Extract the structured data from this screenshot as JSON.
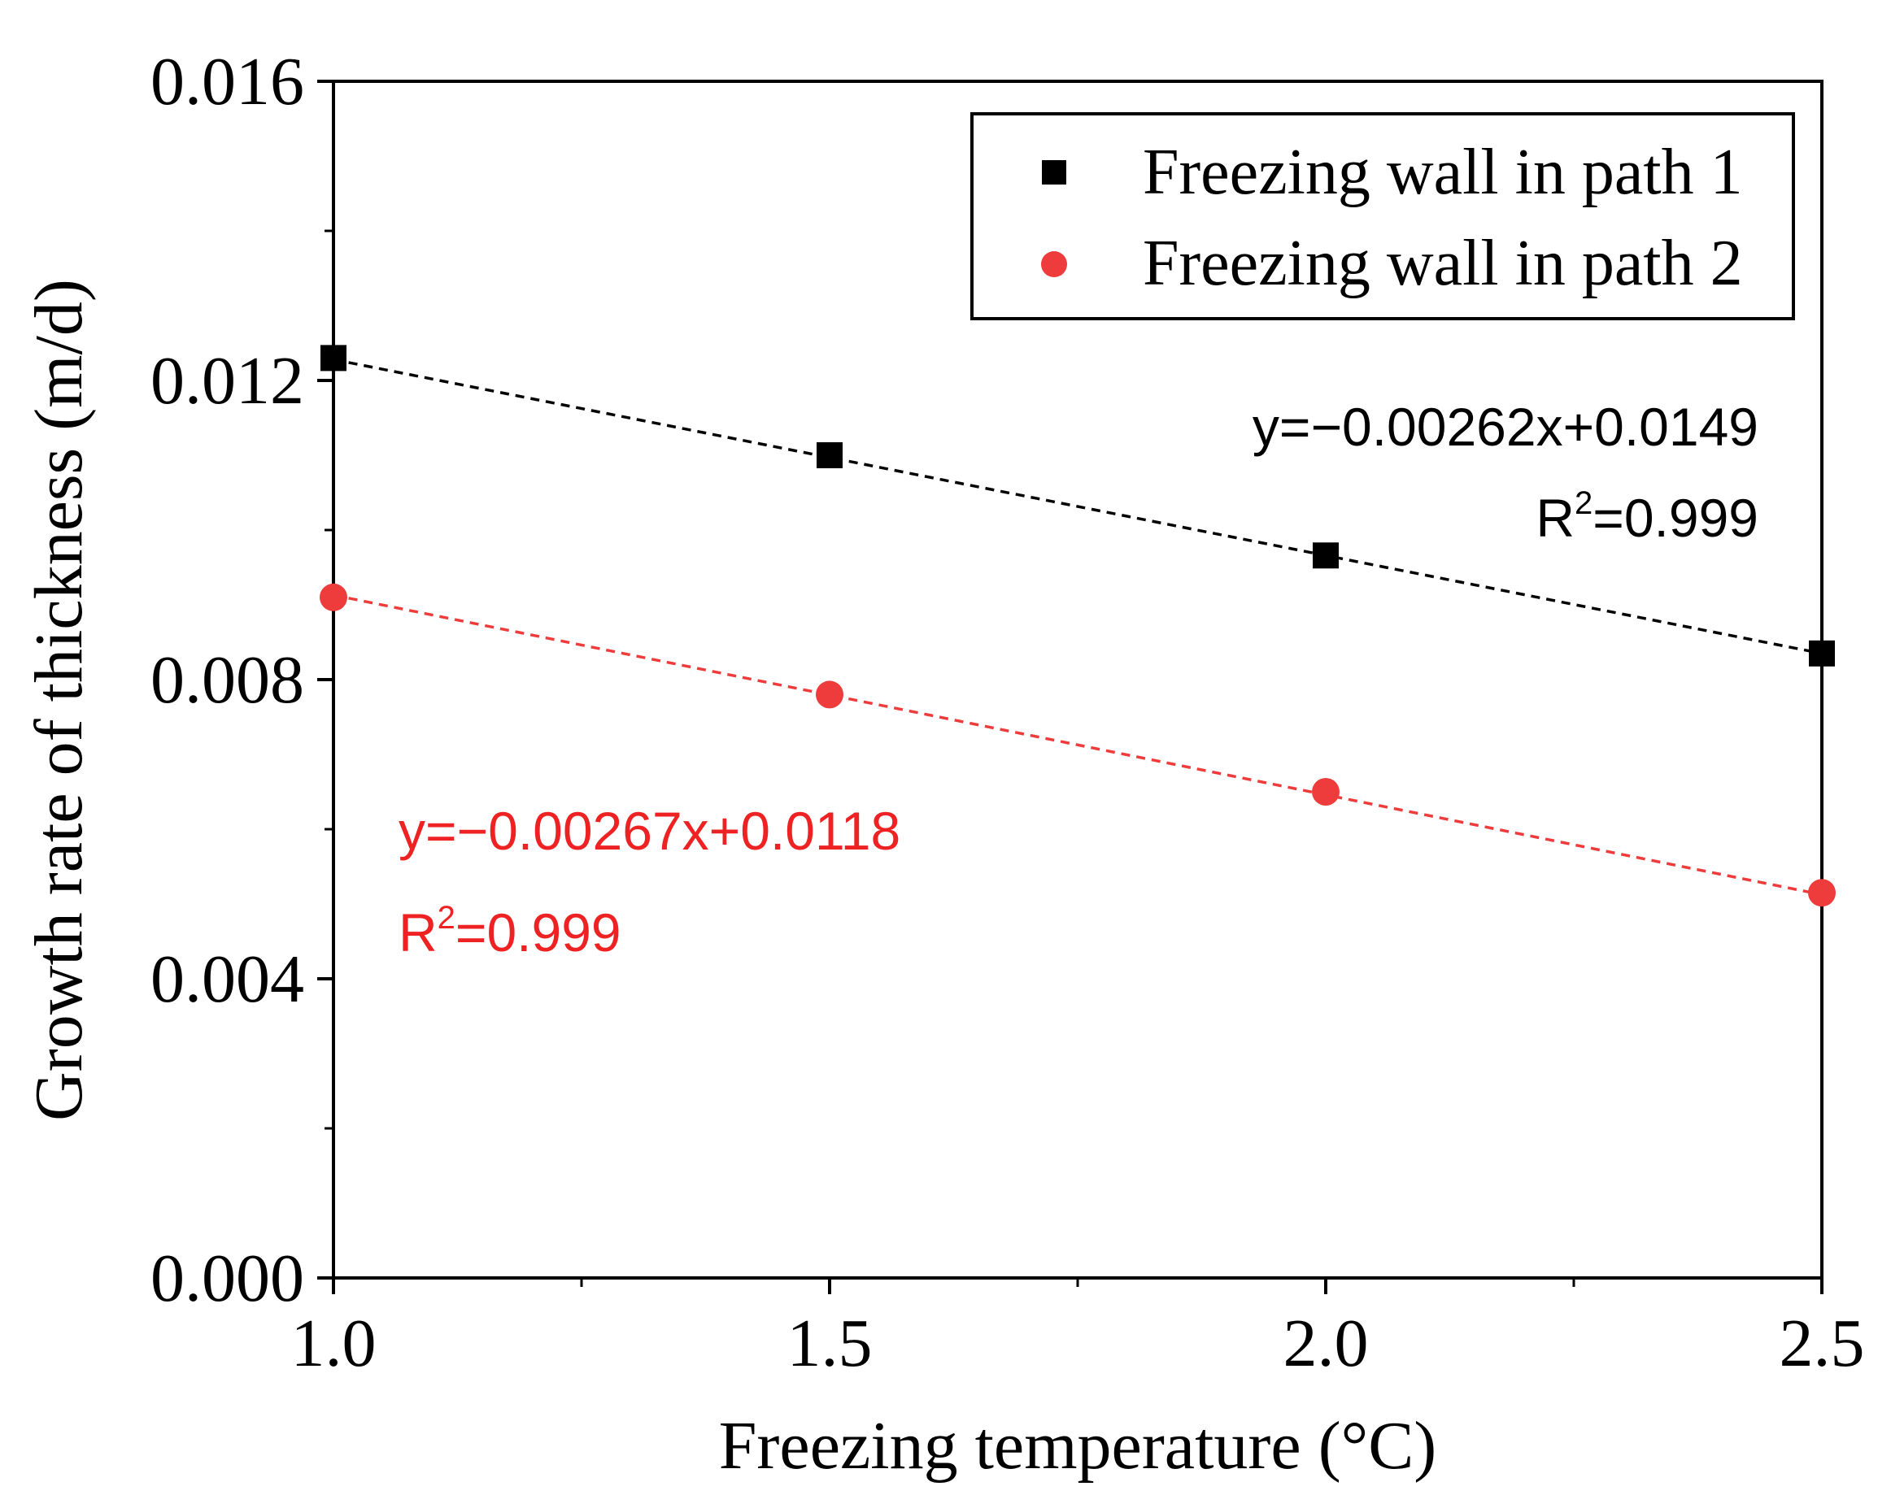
{
  "chart_data": {
    "type": "scatter",
    "xlabel": "Freezing temperature (°C)",
    "ylabel": "Growth rate of thickness (m/d)",
    "xlim": [
      1.0,
      2.5
    ],
    "ylim": [
      0.0,
      0.016
    ],
    "x_ticks": [
      "1.0",
      "1.5",
      "2.0",
      "2.5"
    ],
    "y_ticks": [
      "0.000",
      "0.004",
      "0.008",
      "0.012",
      "0.016"
    ],
    "legend_position": "top-right",
    "series": [
      {
        "name": "Freezing wall in path 1",
        "marker": "square",
        "color": "#000000",
        "x": [
          1.0,
          1.5,
          2.0,
          2.5
        ],
        "y": [
          0.0123,
          0.011,
          0.00966,
          0.00835
        ],
        "fit": {
          "slope": -0.00262,
          "intercept": 0.0149,
          "equation": "y=−0.00262x+0.0149",
          "r2_label": "R",
          "r2_sup": "2",
          "r2_value": "=0.999"
        }
      },
      {
        "name": "Freezing wall in path 2",
        "marker": "circle",
        "color": "#ee3b3b",
        "x": [
          1.0,
          1.5,
          2.0,
          2.5
        ],
        "y": [
          0.0091,
          0.0078,
          0.0065,
          0.00515
        ],
        "fit": {
          "slope": -0.00267,
          "intercept": 0.0118,
          "equation": "y=−0.00267x+0.0118",
          "r2_label": "R",
          "r2_sup": "2",
          "r2_value": "=0.999"
        }
      }
    ]
  }
}
